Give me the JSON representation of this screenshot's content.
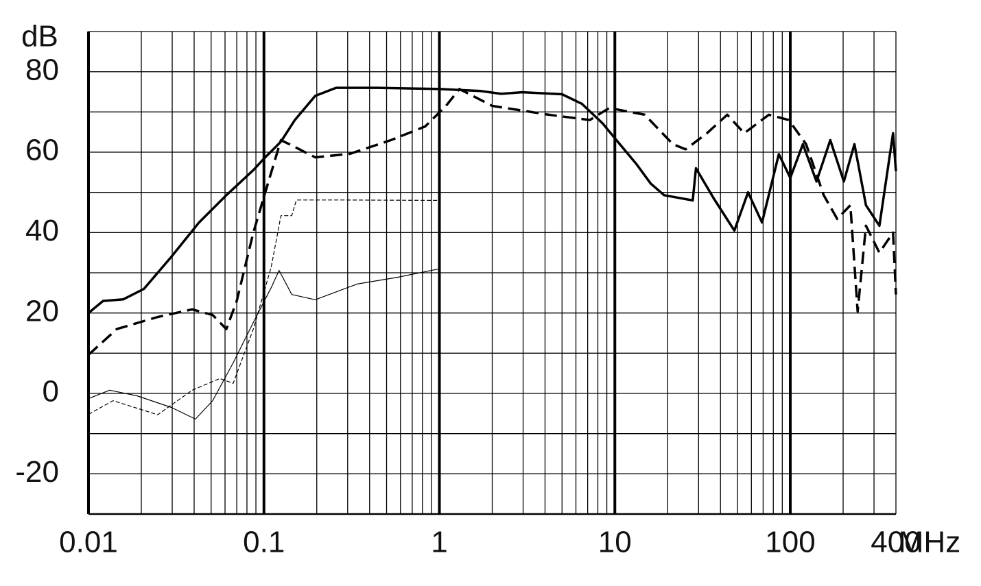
{
  "chart_data": {
    "type": "line",
    "y_label": "dB",
    "x_label": "MHz",
    "x_log": true,
    "xlim": [
      0.01,
      400
    ],
    "xticks": [
      0.01,
      0.1,
      1,
      10,
      100,
      400
    ],
    "ylim": [
      -30,
      90
    ],
    "yticks": [
      -20,
      0,
      20,
      40,
      60,
      80
    ],
    "minor_yticks": [
      -30,
      -10,
      10,
      30,
      50,
      70,
      90
    ],
    "grid": true,
    "series": [
      {
        "color": "#000000",
        "width": 3.5,
        "line_style": "solid",
        "x": [
          0.01,
          0.0121,
          0.0158,
          0.0207,
          0.0297,
          0.0426,
          0.0611,
          0.0873,
          0.1,
          0.125,
          0.15,
          0.196,
          0.258,
          0.44,
          1,
          1.72,
          2.25,
          2.95,
          5.0,
          6.5,
          8.5,
          10.2,
          13.3,
          16,
          19.1,
          27.8,
          29,
          36.6,
          48,
          57.4,
          69,
          86,
          100,
          118,
          141,
          169,
          202,
          232,
          270,
          322,
          385,
          400
        ],
        "values": [
          20,
          23,
          23.4,
          26,
          34,
          42.5,
          49.3,
          55.6,
          58.4,
          62.6,
          68,
          74,
          76,
          76,
          75.7,
          75.2,
          74.5,
          74.9,
          74.4,
          72,
          67.2,
          63,
          57,
          52.2,
          49.3,
          48,
          56,
          48.5,
          40.5,
          50,
          42.5,
          59.5,
          53.6,
          62,
          52.7,
          63,
          52.7,
          62,
          46.8,
          41.7,
          64.7,
          55.3
        ]
      },
      {
        "color": "#000000",
        "width": 3.5,
        "line_style": "dashed",
        "x": [
          0.01,
          0.0145,
          0.0248,
          0.039,
          0.051,
          0.061,
          0.07,
          0.087,
          0.105,
          0.125,
          0.15,
          0.196,
          0.31,
          0.53,
          0.83,
          1.09,
          1.3,
          2.0,
          4.2,
          7.2,
          9.3,
          14.8,
          21.4,
          25.3,
          33.5,
          43.7,
          54.6,
          75.5,
          98,
          123,
          155,
          185,
          220,
          242,
          270,
          322,
          385,
          400
        ],
        "values": [
          9.6,
          16,
          19,
          20.9,
          19.5,
          16,
          23,
          40,
          52,
          63,
          61.3,
          58.7,
          59.6,
          63,
          66.4,
          71.5,
          75.7,
          71.5,
          69.3,
          68,
          71,
          69.3,
          62,
          60.7,
          64.7,
          69.3,
          64.7,
          69.3,
          68,
          62,
          49.3,
          43.4,
          46.8,
          20.4,
          41.7,
          35,
          40,
          24.6
        ]
      },
      {
        "color": "#000000",
        "width": 1.2,
        "line_style": "solid",
        "x": [
          0.01,
          0.0132,
          0.0189,
          0.0297,
          0.0407,
          0.051,
          0.0668,
          0.0873,
          0.11,
          0.122,
          0.144,
          0.196,
          0.34,
          0.58,
          0.98
        ],
        "values": [
          -1.3,
          0.8,
          -0.6,
          -3.5,
          -6.4,
          -1.8,
          7.6,
          17.8,
          26.3,
          30.6,
          24.6,
          23.3,
          27.2,
          28.9,
          30.9
        ]
      },
      {
        "color": "#000000",
        "width": 1.2,
        "line_style": "dashed",
        "x": [
          0.01,
          0.0138,
          0.0248,
          0.039,
          0.056,
          0.0668,
          0.087,
          0.11,
          0.125,
          0.144,
          0.153,
          0.28,
          0.98
        ],
        "values": [
          -5.2,
          -1.8,
          -5.3,
          0.8,
          3.7,
          2.5,
          16,
          31.4,
          44.2,
          44.2,
          48.1,
          48.1,
          48
        ]
      }
    ]
  }
}
